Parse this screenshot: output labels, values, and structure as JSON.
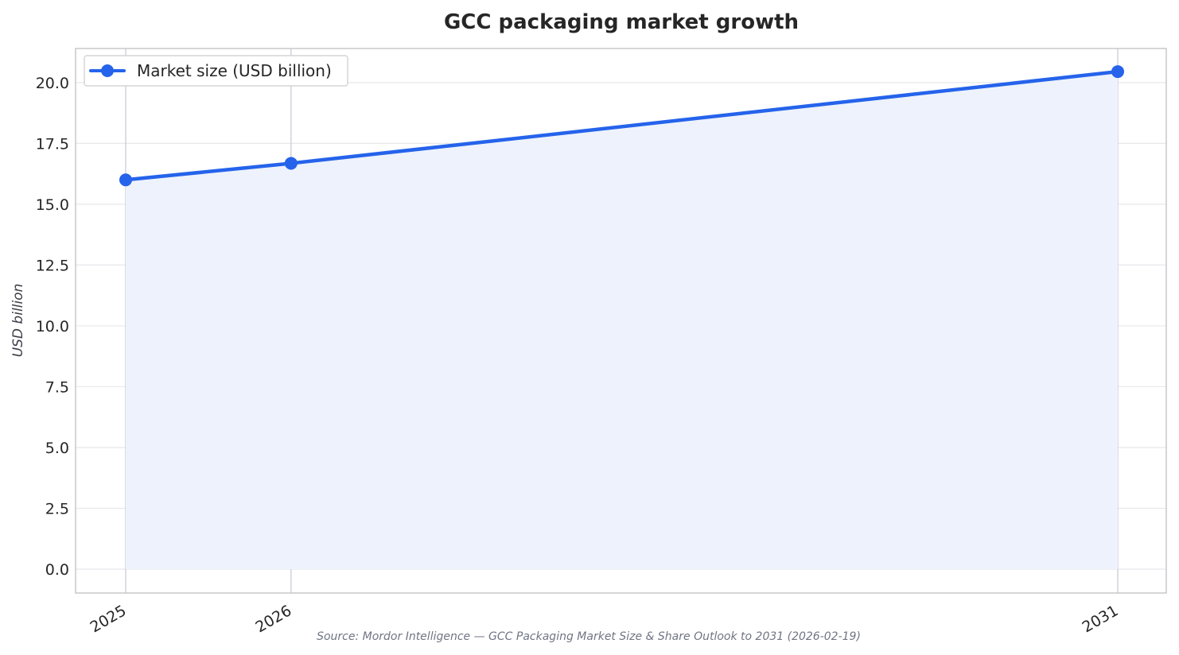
{
  "chart_data": {
    "type": "line",
    "title": "GCC packaging market growth",
    "xlabel": "",
    "ylabel": "USD billion",
    "categories": [
      "2025",
      "2026",
      "2031"
    ],
    "series": [
      {
        "name": "Market size (USD billion)",
        "values": [
          16.0,
          16.68,
          20.45
        ],
        "color": "#2563eb",
        "fill": "#edf2fc"
      }
    ],
    "ylim": [
      -0.98,
      21.4
    ],
    "yticks": [
      0,
      2.5,
      5,
      7.5,
      10,
      12.5,
      15,
      17.5,
      20
    ],
    "ytick_labels": [
      "0.0",
      "2.5",
      "5.0",
      "7.5",
      "10.0",
      "12.5",
      "15.0",
      "17.5",
      "20.0"
    ],
    "grid": true,
    "legend_position": "top-left",
    "source": "Source: Mordor Intelligence — GCC Packaging Market Size & Share Outlook to 2031 (2026-02-19)",
    "colors": {
      "line": "#2563eb",
      "area": "#edf2fc",
      "grid": "#e8e8ec",
      "vgrid": "#c4c8d4",
      "frame": "#c8c8cc"
    }
  }
}
